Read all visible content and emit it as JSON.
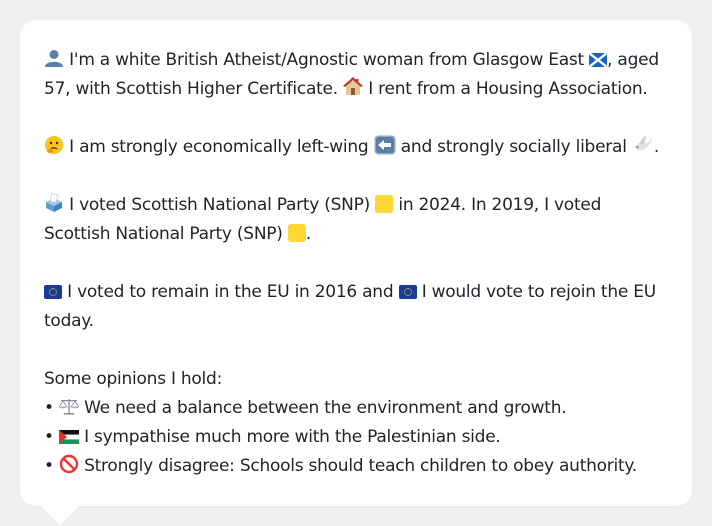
{
  "profile": {
    "line1_a": "I'm a white British Atheist/Agnostic woman from Glasgow East",
    "line1_b": ", aged 57, with Scottish Higher Certificate.",
    "line1_c": "I rent from a Housing Association.",
    "line2_a": "I am strongly economically left-wing",
    "line2_b": "and strongly socially liberal",
    "line2_c": ".",
    "line3_a": "I voted Scottish National Party (SNP)",
    "line3_b": "in 2024. In 2019, I voted Scottish National Party (SNP)",
    "line3_c": ".",
    "line4_a": "I voted to remain in the EU in 2016 and",
    "line4_b": "I would vote to rejoin the EU today.",
    "opinions_heading": "Some opinions I hold:",
    "opinions": [
      "We need a balance between the environment and growth.",
      "I sympathise much more with the Palestinian side.",
      "Strongly disagree: Schools should teach children to obey authority."
    ],
    "bullet": "•"
  },
  "icons": {
    "person": "person-icon",
    "scotland_flag": "scotland-flag-icon",
    "house": "house-icon",
    "thinking": "thinking-face-icon",
    "left_arrow": "left-arrow-icon",
    "dove": "dove-icon",
    "ballot": "ballot-box-icon",
    "snp_square": "yellow-square-icon",
    "eu_flag": "eu-flag-icon",
    "scales": "balance-scale-icon",
    "palestine_flag": "palestine-flag-icon",
    "no_entry": "prohibited-icon"
  },
  "colors": {
    "background": "#f0f0f0",
    "card": "#ffffff",
    "text": "#1f2328",
    "snp_yellow": "#fdd835",
    "eu_blue": "#1a3b9c",
    "scotland_blue": "#1565c0"
  }
}
